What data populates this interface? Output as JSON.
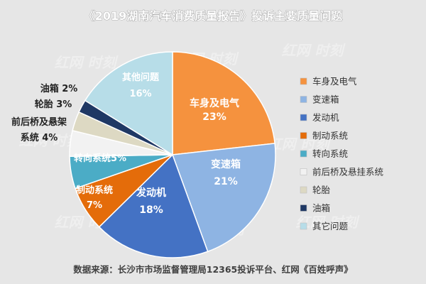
{
  "chart_data": {
    "type": "pie",
    "title": "《2019湖南汽车消费质量报告》投诉主要质量问题",
    "slices": [
      {
        "name": "车身及电气",
        "label": "车身及电气",
        "pct_text": "23%",
        "value": 23,
        "color": "#F5923E",
        "text_color": "#ffffff"
      },
      {
        "name": "变速箱",
        "label": "变速箱",
        "pct_text": "21%",
        "value": 21,
        "color": "#8EB4E3",
        "text_color": "#ffffff"
      },
      {
        "name": "发动机",
        "label": "发动机",
        "pct_text": "18%",
        "value": 18,
        "color": "#4472C4",
        "text_color": "#ffffff"
      },
      {
        "name": "制动系统",
        "label": "制动系统",
        "pct_text": "7%",
        "value": 7,
        "color": "#E46C0A",
        "text_color": "#ffffff"
      },
      {
        "name": "转向系统",
        "label": "转向系统5%",
        "pct_text": "",
        "value": 5,
        "color": "#4BACC6",
        "text_color": "#ffffff"
      },
      {
        "name": "前后桥及悬挂系统",
        "label": "前后桥及悬架",
        "pct_text": "系统 4%",
        "value": 4,
        "color": "#F2F2F2",
        "text_color": "#222222"
      },
      {
        "name": "轮胎",
        "label": "轮胎 3%",
        "pct_text": "",
        "value": 3,
        "color": "#DDD9C3",
        "text_color": "#222222"
      },
      {
        "name": "油箱",
        "label": "油箱 2%",
        "pct_text": "",
        "value": 2,
        "color": "#1F3864",
        "text_color": "#222222"
      },
      {
        "name": "其它问题",
        "label": "其他问题",
        "pct_text": "16%",
        "value": 16,
        "color": "#B7DDE8",
        "text_color": "#ffffff"
      }
    ],
    "legend": {
      "position": "right",
      "entries": [
        "车身及电气",
        "变速箱",
        "发动机",
        "制动系统",
        "转向系统",
        "前后桥及悬挂系统",
        "轮胎",
        "油箱",
        "其它问题"
      ]
    }
  },
  "source": "数据来源：长沙市市场监督管理局12365投诉平台、红网《百姓呼声》",
  "watermark": "红网 时刻"
}
